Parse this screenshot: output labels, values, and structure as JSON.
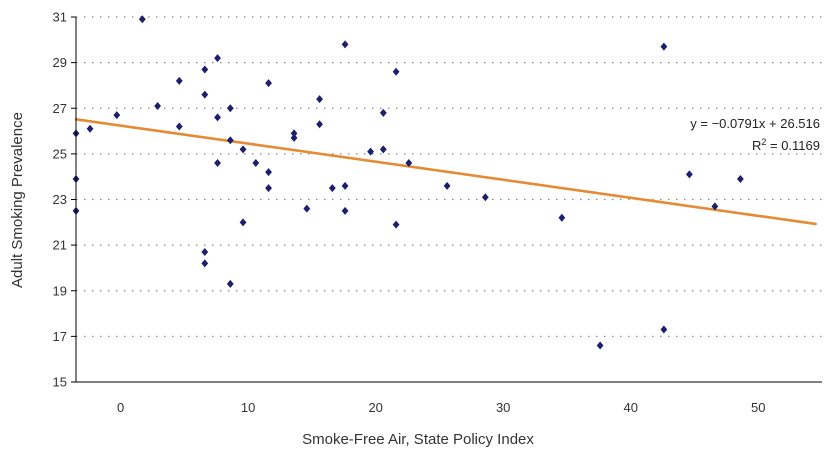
{
  "chart_data": {
    "type": "scatter",
    "title": "",
    "xlabel": "Smoke-Free Air, State Policy Index",
    "ylabel": "Adult Smoking Prevalence",
    "xlim": [
      -3.5,
      55
    ],
    "ylim": [
      15,
      31
    ],
    "xticks": [
      0,
      10,
      20,
      30,
      40,
      50
    ],
    "yticks": [
      15,
      17,
      19,
      21,
      23,
      25,
      27,
      29,
      31
    ],
    "grid": "horizontal dotted",
    "legend": "none",
    "colors": {
      "points": "#1a1f6e",
      "trendline": "#e58a35",
      "grid": "#888888",
      "axis": "#000000"
    },
    "series": [
      {
        "marker": "diamond",
        "points": [
          [
            -3.5,
            25.9
          ],
          [
            -3.5,
            23.9
          ],
          [
            -3.5,
            22.5
          ],
          [
            -2.4,
            26.1
          ],
          [
            -0.3,
            26.7
          ],
          [
            1.7,
            30.9
          ],
          [
            2.9,
            27.1
          ],
          [
            4.6,
            28.2
          ],
          [
            4.6,
            26.2
          ],
          [
            6.6,
            28.7
          ],
          [
            6.6,
            27.6
          ],
          [
            6.6,
            20.7
          ],
          [
            6.6,
            20.2
          ],
          [
            7.6,
            29.2
          ],
          [
            7.6,
            26.6
          ],
          [
            7.6,
            24.6
          ],
          [
            8.6,
            27.0
          ],
          [
            8.6,
            25.6
          ],
          [
            8.6,
            19.3
          ],
          [
            9.6,
            25.2
          ],
          [
            9.6,
            22.0
          ],
          [
            10.6,
            24.6
          ],
          [
            11.6,
            28.1
          ],
          [
            11.6,
            24.2
          ],
          [
            11.6,
            23.5
          ],
          [
            13.6,
            25.9
          ],
          [
            13.6,
            25.7
          ],
          [
            14.6,
            22.6
          ],
          [
            15.6,
            27.4
          ],
          [
            15.6,
            26.3
          ],
          [
            16.6,
            23.5
          ],
          [
            17.6,
            29.8
          ],
          [
            17.6,
            23.6
          ],
          [
            17.6,
            22.5
          ],
          [
            19.6,
            25.1
          ],
          [
            20.6,
            26.8
          ],
          [
            20.6,
            25.2
          ],
          [
            21.6,
            28.6
          ],
          [
            21.6,
            21.9
          ],
          [
            22.6,
            24.6
          ],
          [
            25.6,
            23.6
          ],
          [
            28.6,
            23.1
          ],
          [
            34.6,
            22.2
          ],
          [
            37.6,
            16.6
          ],
          [
            42.6,
            29.7
          ],
          [
            42.6,
            17.3
          ],
          [
            44.6,
            24.1
          ],
          [
            46.6,
            22.7
          ],
          [
            48.6,
            23.9
          ]
        ]
      }
    ],
    "trendline": {
      "slope": -0.0791,
      "intercept": 26.516,
      "equation": "y = −0.0791x + 26.516",
      "r2_label": "R",
      "r2_sup": "2",
      "r2_value": " = 0.1169"
    }
  }
}
